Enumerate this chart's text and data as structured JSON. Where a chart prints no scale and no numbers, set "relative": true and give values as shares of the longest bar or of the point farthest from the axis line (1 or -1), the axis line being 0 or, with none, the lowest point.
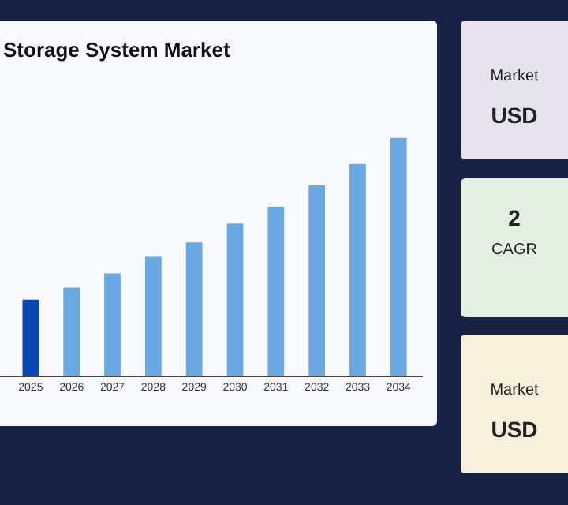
{
  "chart_data": {
    "type": "bar",
    "title": "Storage System Market",
    "categories": [
      "2025",
      "2026",
      "2027",
      "2028",
      "2029",
      "2030",
      "2031",
      "2032",
      "2033",
      "2034"
    ],
    "values": [
      0.32,
      0.37,
      0.43,
      0.5,
      0.56,
      0.64,
      0.71,
      0.8,
      0.89,
      1
    ],
    "colors": [
      "#0a47b5",
      "#6aa8e4",
      "#6aa8e4",
      "#6aa8e4",
      "#6aa8e4",
      "#6aa8e4",
      "#6aa8e4",
      "#6aa8e4",
      "#6aa8e4",
      "#6aa8e4"
    ],
    "relative": true,
    "grid": false,
    "legend": false,
    "annotations": [
      "Market",
      "USD",
      "2",
      "CAGR",
      "Market",
      "USD"
    ]
  }
}
